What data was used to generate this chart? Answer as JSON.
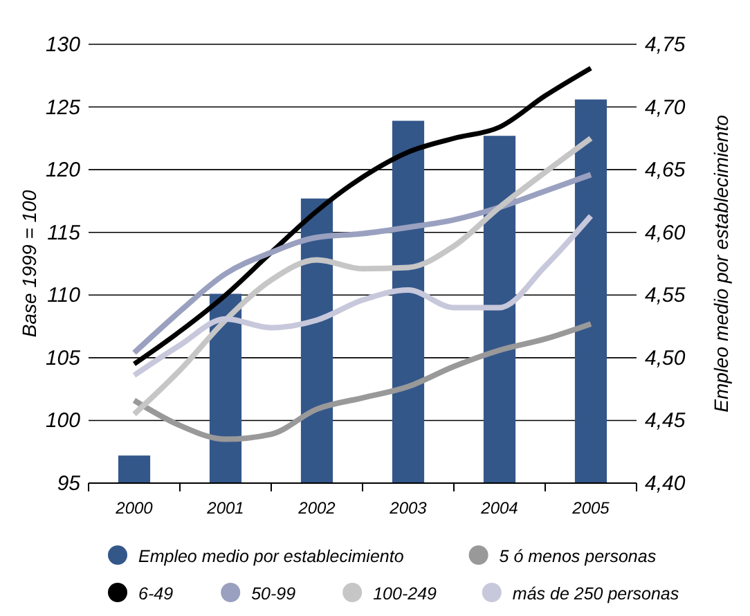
{
  "chart_data": {
    "type": "line",
    "ylabel": "Base 1999 = 100",
    "y2label": "Empleo medio por establecimiento",
    "x": [
      2000,
      2001,
      2002,
      2003,
      2004,
      2005
    ],
    "xlim": [
      1999.5,
      2005.5
    ],
    "xticks": [
      2000,
      2001,
      2002,
      2003,
      2004,
      2005
    ],
    "ylim": [
      95,
      130
    ],
    "yticks": [
      95,
      100,
      105,
      110,
      115,
      120,
      125,
      130
    ],
    "y2lim": [
      4.4,
      4.75
    ],
    "y2ticks": [
      {
        "value": 4.4,
        "label": "4,40"
      },
      {
        "value": 4.45,
        "label": "4,45"
      },
      {
        "value": 4.5,
        "label": "4,50"
      },
      {
        "value": 4.55,
        "label": "4,55"
      },
      {
        "value": 4.6,
        "label": "4,60"
      },
      {
        "value": 4.65,
        "label": "4,65"
      },
      {
        "value": 4.7,
        "label": "4,70"
      },
      {
        "value": 4.75,
        "label": "4,75"
      }
    ],
    "grid": "y",
    "legend": "bottom",
    "line_style": "solid",
    "marker": "none",
    "series": [
      {
        "name": "Empleo medio por establecimiento",
        "type": "bar",
        "axis": "y2",
        "color": "#34578a",
        "values": [
          4.422,
          4.551,
          4.627,
          4.689,
          4.677,
          4.706
        ]
      },
      {
        "name": "5 ó menos personas",
        "color": "#999999",
        "x": [
          2000,
          2000.5,
          2001,
          2001.5,
          2002,
          2002.5,
          2003,
          2003.5,
          2004,
          2004.5,
          2005
        ],
        "values": [
          101.6,
          99.6,
          98.5,
          98.9,
          100.9,
          101.8,
          102.7,
          104.3,
          105.6,
          106.5,
          107.7
        ]
      },
      {
        "name": "6-49",
        "color": "#000000",
        "x": [
          2000,
          2000.5,
          2001,
          2001.5,
          2002,
          2002.5,
          2003,
          2003.5,
          2004,
          2004.5,
          2005
        ],
        "values": [
          104.5,
          107.1,
          110.0,
          113.4,
          116.7,
          119.4,
          121.4,
          122.5,
          123.4,
          125.9,
          128.1
        ]
      },
      {
        "name": "50-99",
        "color": "#9aa0bf",
        "x": [
          2000,
          2000.5,
          2001,
          2001.5,
          2002,
          2002.5,
          2003,
          2003.5,
          2004,
          2004.5,
          2005
        ],
        "values": [
          105.4,
          108.7,
          111.7,
          113.4,
          114.6,
          114.9,
          115.4,
          116.0,
          117.0,
          118.3,
          119.6
        ]
      },
      {
        "name": "100-249",
        "color": "#c6c6c6",
        "x": [
          2000,
          2000.5,
          2001,
          2001.5,
          2002,
          2002.5,
          2003,
          2003.5,
          2004,
          2004.5,
          2005
        ],
        "values": [
          100.5,
          104.0,
          108.0,
          111.2,
          112.8,
          112.1,
          112.2,
          113.9,
          117.0,
          119.8,
          122.5
        ]
      },
      {
        "name": "más de 250 personas",
        "color": "#c8c8dc",
        "x": [
          2000,
          2000.5,
          2001,
          2001.5,
          2002,
          2002.5,
          2003,
          2003.5,
          2004,
          2004.5,
          2005
        ],
        "values": [
          103.6,
          106.0,
          108.1,
          107.4,
          108.0,
          109.6,
          110.4,
          109.0,
          109.0,
          112.3,
          116.3
        ]
      }
    ]
  }
}
